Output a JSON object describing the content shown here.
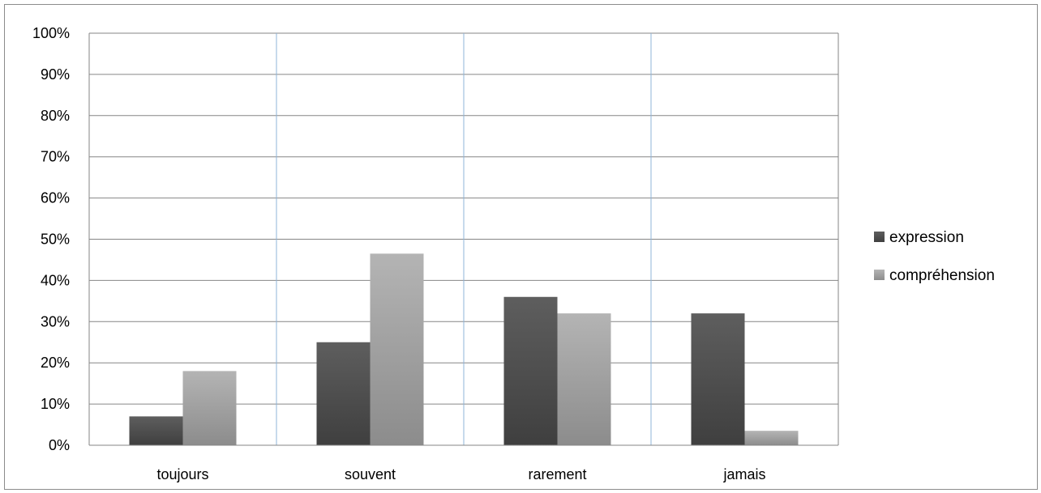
{
  "chart_data": {
    "type": "bar",
    "title": "",
    "xlabel": "",
    "ylabel": "",
    "categories": [
      "toujours",
      "souvent",
      "rarement",
      "jamais"
    ],
    "series": [
      {
        "name": "expression",
        "values": [
          7,
          25,
          36,
          32
        ],
        "color": "#4d4d4d"
      },
      {
        "name": "compréhension",
        "values": [
          18,
          46.5,
          32,
          3.5
        ],
        "color": "#a6a6a6"
      }
    ],
    "ylim": [
      0,
      100
    ],
    "y_ticks": [
      "0%",
      "10%",
      "20%",
      "30%",
      "40%",
      "50%",
      "60%",
      "70%",
      "80%",
      "90%",
      "100%"
    ],
    "y_unit": "%",
    "grid": {
      "horizontal": true,
      "vertical_category_separators": true
    },
    "legend": {
      "position": "right"
    }
  }
}
